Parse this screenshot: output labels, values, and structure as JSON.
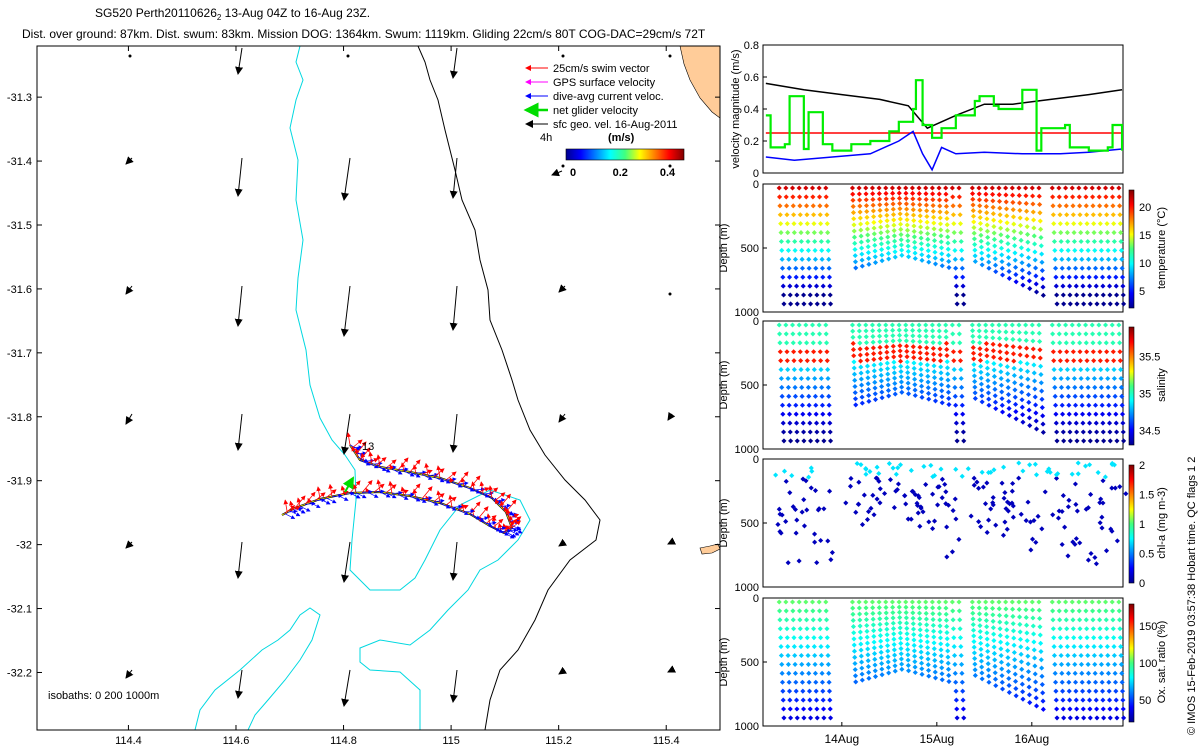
{
  "header": {
    "title_pre": "SG520 Perth20110626",
    "title_sub": "2",
    "title_post": " 13-Aug 04Z to 16-Aug 23Z.",
    "subtitle": "Dist. over ground: 87km. Dist. swum: 83km. Mission DOG: 1364km. Swum: 1119km. Gliding 22cm/s 80T COG-DAC=29cm/s 72T"
  },
  "colors": {
    "swim": "#ff0000",
    "gps": "#ff00ff",
    "dac": "#0000ff",
    "net": "#00dd00",
    "geo": "#000000",
    "coast": "#ffcc99",
    "iso_shallow": "#00dddd",
    "iso_deep": "#000000"
  },
  "map": {
    "xticks": [
      "114.4",
      "114.6",
      "114.8",
      "115",
      "115.2",
      "115.4"
    ],
    "yticks": [
      "-31.3",
      "-31.4",
      "-31.5",
      "-31.6",
      "-31.7",
      "-31.8",
      "-31.9",
      "-32",
      "-32.1",
      "-32.2"
    ],
    "xlim": [
      114.23,
      115.5
    ],
    "ylim": [
      -32.29,
      -31.22
    ],
    "legend": [
      {
        "label": "25cm/s swim vector",
        "color": "#ff0000"
      },
      {
        "label": "GPS surface velocity",
        "color": "#ff00ff"
      },
      {
        "label": "dive-avg current veloc.",
        "color": "#0000ff"
      },
      {
        "label": "net glider velocity",
        "color": "#00dd00"
      },
      {
        "label": "sfc geo. vel. 16-Aug-2011",
        "color": "#000000"
      }
    ],
    "scale_label": "4h",
    "colorbar_title": "(m/s)",
    "colorbar_ticks": [
      "0",
      "0.2",
      "0.4"
    ],
    "isobaths_label": "isobaths: 0   200   1000m",
    "start_label": "13"
  },
  "chart_data": [
    {
      "type": "line",
      "ylabel": "velocity magnitude (m/s)",
      "ylim": [
        0,
        0.8
      ],
      "yticks": [
        "0",
        "0.2",
        "0.4",
        "0.6",
        "0.8"
      ],
      "xlim": [
        13.17,
        16.96
      ],
      "series": [
        {
          "color": "#000000",
          "x": [
            13.2,
            13.6,
            14.0,
            14.4,
            14.7,
            14.9,
            15.2,
            15.5,
            15.8,
            16.2,
            16.6,
            16.95
          ],
          "y": [
            0.56,
            0.52,
            0.49,
            0.46,
            0.42,
            0.28,
            0.36,
            0.43,
            0.43,
            0.46,
            0.49,
            0.52
          ]
        },
        {
          "color": "#ff0000",
          "x": [
            13.2,
            13.9,
            14.0,
            14.65,
            14.85,
            15.0,
            15.1,
            16.95
          ],
          "y": [
            0.25,
            0.25,
            0.25,
            0.25,
            0.25,
            0.25,
            0.25,
            0.25
          ]
        },
        {
          "color": "#0000ff",
          "x": [
            13.2,
            13.5,
            13.9,
            14.3,
            14.6,
            14.75,
            14.85,
            14.95,
            15.05,
            15.2,
            15.5,
            15.9,
            16.3,
            16.6,
            16.95
          ],
          "y": [
            0.1,
            0.08,
            0.1,
            0.12,
            0.2,
            0.26,
            0.12,
            0.02,
            0.16,
            0.12,
            0.13,
            0.12,
            0.12,
            0.13,
            0.15
          ]
        },
        {
          "color": "#00ee00",
          "x": [
            13.2,
            13.25,
            13.4,
            13.45,
            13.6,
            13.65,
            13.8,
            13.9,
            14.1,
            14.3,
            14.5,
            14.6,
            14.75,
            14.78,
            14.85,
            14.95,
            15.05,
            15.2,
            15.4,
            15.45,
            15.6,
            15.65,
            15.9,
            16.05,
            16.1,
            16.35,
            16.4,
            16.6,
            16.8,
            16.85,
            16.95
          ],
          "y": [
            0.36,
            0.16,
            0.18,
            0.48,
            0.15,
            0.38,
            0.18,
            0.14,
            0.18,
            0.2,
            0.26,
            0.32,
            0.4,
            0.58,
            0.3,
            0.22,
            0.28,
            0.36,
            0.45,
            0.48,
            0.42,
            0.4,
            0.52,
            0.14,
            0.28,
            0.3,
            0.16,
            0.14,
            0.16,
            0.3,
            0.14
          ]
        }
      ]
    },
    {
      "type": "scatter",
      "ylabel": "Depth (m)",
      "yticks": [
        "0",
        "500",
        "1000"
      ],
      "ylim": [
        1000,
        0
      ],
      "cbar_label": "temperature (°C)",
      "cbar_ticks": [
        "5",
        "10",
        "15",
        "20"
      ],
      "clim": [
        2,
        23
      ]
    },
    {
      "type": "scatter",
      "ylabel": "Depth (m)",
      "yticks": [
        "0",
        "500",
        "1000"
      ],
      "ylim": [
        1000,
        0
      ],
      "cbar_label": "salinity",
      "cbar_ticks": [
        "34.5",
        "35",
        "35.5"
      ],
      "clim": [
        34.3,
        35.9
      ]
    },
    {
      "type": "scatter",
      "ylabel": "Depth (m)",
      "yticks": [
        "0",
        "500",
        "1000"
      ],
      "ylim": [
        1000,
        0
      ],
      "cbar_label": "chl-a (mg m-3)",
      "cbar_ticks": [
        "0",
        "0.5",
        "1",
        "1.5",
        "2"
      ],
      "clim": [
        0,
        2
      ]
    },
    {
      "type": "scatter",
      "ylabel": "Depth (m)",
      "yticks": [
        "0",
        "500",
        "1000"
      ],
      "ylim": [
        1000,
        0
      ],
      "cbar_label": "Ox. sat. ratio (%)",
      "cbar_ticks": [
        "50",
        "100",
        "150"
      ],
      "clim": [
        20,
        180
      ],
      "xticks": [
        "14Aug",
        "15Aug",
        "16Aug"
      ]
    }
  ],
  "side_note": "© IMOS 15-Feb-2019 03:57:38 Hobart time. QC flags 1  2"
}
